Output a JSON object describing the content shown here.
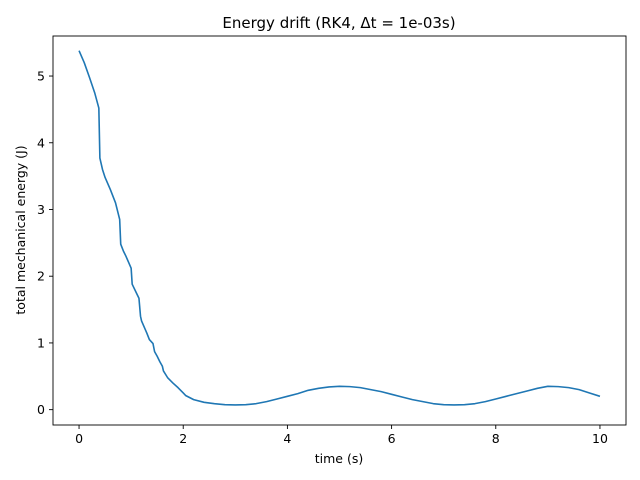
{
  "chart_data": {
    "type": "line",
    "title": "Energy drift (RK4, Δt = 1e-03s)",
    "xlabel": "time (s)",
    "ylabel": "total mechanical energy (J)",
    "xlim": [
      -0.5,
      10.5
    ],
    "ylim": [
      -0.23,
      5.6
    ],
    "grid": false,
    "legend": "none",
    "x_ticks": [
      0,
      2,
      4,
      6,
      8,
      10
    ],
    "x_tick_labels": [
      "0",
      "2",
      "4",
      "6",
      "8",
      "10"
    ],
    "y_ticks": [
      0,
      1,
      2,
      3,
      4,
      5
    ],
    "y_tick_labels": [
      "0",
      "1",
      "2",
      "3",
      "4",
      "5"
    ],
    "series": [
      {
        "color": "#1f77b4",
        "x": [
          0,
          0.1,
          0.2,
          0.3,
          0.38,
          0.4,
          0.45,
          0.5,
          0.6,
          0.7,
          0.78,
          0.8,
          0.85,
          0.9,
          1.0,
          1.02,
          1.1,
          1.15,
          1.18,
          1.2,
          1.3,
          1.35,
          1.42,
          1.45,
          1.5,
          1.55,
          1.6,
          1.62,
          1.7,
          1.8,
          1.9,
          2.0,
          2.05,
          2.2,
          2.4,
          2.6,
          2.8,
          3.0,
          3.2,
          3.4,
          3.6,
          3.8,
          4.0,
          4.2,
          4.4,
          4.6,
          4.8,
          5.0,
          5.2,
          5.4,
          5.6,
          5.8,
          6.0,
          6.2,
          6.4,
          6.6,
          6.8,
          7.0,
          7.2,
          7.4,
          7.6,
          7.8,
          8.0,
          8.2,
          8.4,
          8.6,
          8.8,
          9.0,
          9.2,
          9.4,
          9.6,
          9.8,
          10.0
        ],
        "y": [
          5.38,
          5.2,
          4.98,
          4.75,
          4.52,
          3.77,
          3.6,
          3.48,
          3.3,
          3.1,
          2.85,
          2.48,
          2.38,
          2.3,
          2.12,
          1.88,
          1.75,
          1.67,
          1.4,
          1.33,
          1.15,
          1.05,
          0.99,
          0.87,
          0.8,
          0.72,
          0.65,
          0.58,
          0.48,
          0.4,
          0.33,
          0.25,
          0.21,
          0.15,
          0.11,
          0.09,
          0.075,
          0.07,
          0.075,
          0.09,
          0.12,
          0.16,
          0.2,
          0.24,
          0.29,
          0.32,
          0.34,
          0.35,
          0.345,
          0.33,
          0.3,
          0.27,
          0.23,
          0.19,
          0.15,
          0.12,
          0.09,
          0.075,
          0.07,
          0.075,
          0.09,
          0.12,
          0.16,
          0.2,
          0.24,
          0.28,
          0.32,
          0.35,
          0.345,
          0.33,
          0.3,
          0.25,
          0.2
        ]
      }
    ]
  }
}
